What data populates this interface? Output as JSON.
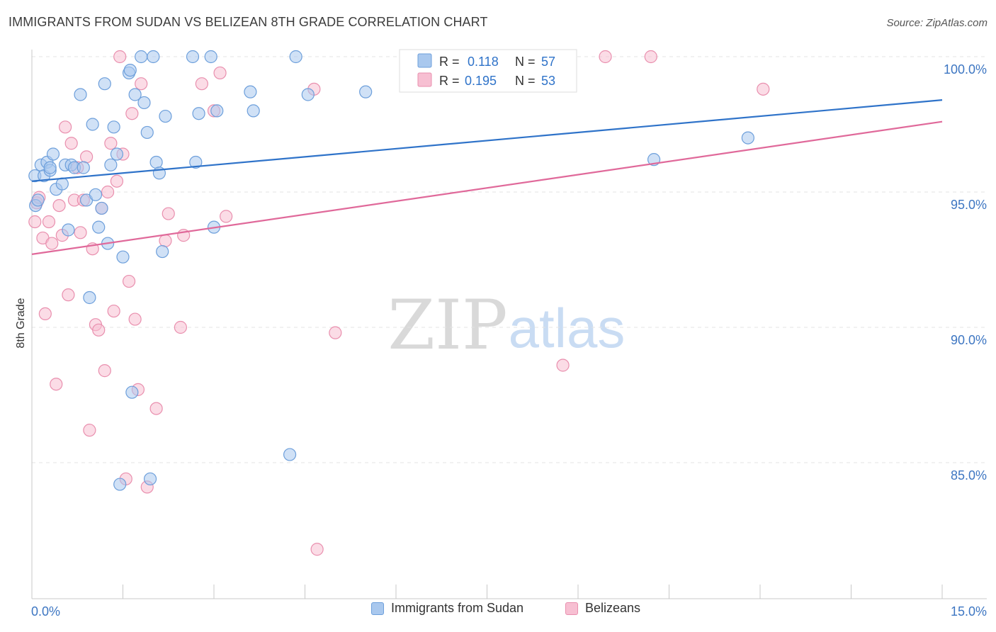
{
  "header": {
    "title": "IMMIGRANTS FROM SUDAN VS BELIZEAN 8TH GRADE CORRELATION CHART",
    "source": "Source: ZipAtlas.com"
  },
  "watermark": {
    "zip": "ZIP",
    "atlas": "atlas"
  },
  "colors": {
    "blue_fill": "#a9c8ee",
    "blue_stroke": "#6d9fdb",
    "blue_line": "#2f73c9",
    "pink_fill": "#f7bfd2",
    "pink_stroke": "#e98fae",
    "pink_line": "#e0699a",
    "axis_label": "#3d76c2",
    "grid": "#e3e3e3"
  },
  "legend": {
    "entries": [
      {
        "r_label": "R = ",
        "r_value": "0.118",
        "n_label": "N = ",
        "n_value": "57"
      },
      {
        "r_label": "R = ",
        "r_value": "0.195",
        "n_label": "N = ",
        "n_value": "53"
      }
    ]
  },
  "chart_data": {
    "type": "scatter",
    "title": "IMMIGRANTS FROM SUDAN VS BELIZEAN 8TH GRADE CORRELATION CHART",
    "xlabel": "",
    "ylabel": "8th Grade",
    "xlim": [
      0,
      15
    ],
    "ylim": [
      80,
      100.8
    ],
    "x_tick_labels": [
      "0.0%",
      "15.0%"
    ],
    "y_ticks": [
      85,
      90,
      95,
      100
    ],
    "y_tick_labels": [
      "85.0%",
      "90.0%",
      "95.0%",
      "100.0%"
    ],
    "grid": true,
    "series": [
      {
        "name": "Immigrants from Sudan",
        "R": 0.118,
        "N": 57,
        "trend": {
          "x": [
            0,
            15
          ],
          "y": [
            95.4,
            98.4
          ]
        },
        "points": [
          [
            0.05,
            95.6
          ],
          [
            0.06,
            94.5
          ],
          [
            0.1,
            94.7
          ],
          [
            0.15,
            96.0
          ],
          [
            0.2,
            95.6
          ],
          [
            0.25,
            96.1
          ],
          [
            0.3,
            95.8
          ],
          [
            0.35,
            96.4
          ],
          [
            0.4,
            95.1
          ],
          [
            0.5,
            95.3
          ],
          [
            0.55,
            96.0
          ],
          [
            0.6,
            93.6
          ],
          [
            0.65,
            96.0
          ],
          [
            0.7,
            95.9
          ],
          [
            0.8,
            98.6
          ],
          [
            0.85,
            95.9
          ],
          [
            0.9,
            94.7
          ],
          [
            0.95,
            91.1
          ],
          [
            1.0,
            97.5
          ],
          [
            1.05,
            94.9
          ],
          [
            1.1,
            93.7
          ],
          [
            1.15,
            94.4
          ],
          [
            1.2,
            99.0
          ],
          [
            1.25,
            93.1
          ],
          [
            1.3,
            96.0
          ],
          [
            1.35,
            97.4
          ],
          [
            1.4,
            96.4
          ],
          [
            1.45,
            84.2
          ],
          [
            1.5,
            92.6
          ],
          [
            1.6,
            99.4
          ],
          [
            1.62,
            99.5
          ],
          [
            1.65,
            87.6
          ],
          [
            1.7,
            98.6
          ],
          [
            1.8,
            100.0
          ],
          [
            1.85,
            98.3
          ],
          [
            1.9,
            97.2
          ],
          [
            1.95,
            84.4
          ],
          [
            2.0,
            100.0
          ],
          [
            2.05,
            96.1
          ],
          [
            2.1,
            95.7
          ],
          [
            2.15,
            92.8
          ],
          [
            2.2,
            97.8
          ],
          [
            2.65,
            100.0
          ],
          [
            2.7,
            96.1
          ],
          [
            2.75,
            97.9
          ],
          [
            2.95,
            100.0
          ],
          [
            3.0,
            93.7
          ],
          [
            3.05,
            98.0
          ],
          [
            3.6,
            98.7
          ],
          [
            3.65,
            98.0
          ],
          [
            4.25,
            85.3
          ],
          [
            4.35,
            100.0
          ],
          [
            4.55,
            98.6
          ],
          [
            5.5,
            98.7
          ],
          [
            10.25,
            96.2
          ],
          [
            11.8,
            97.0
          ],
          [
            0.3,
            95.9
          ]
        ]
      },
      {
        "name": "Belizeans",
        "R": 0.195,
        "N": 53,
        "trend": {
          "x": [
            0,
            15
          ],
          "y": [
            92.7,
            97.6
          ]
        },
        "points": [
          [
            0.05,
            93.9
          ],
          [
            0.08,
            94.6
          ],
          [
            0.12,
            94.8
          ],
          [
            0.18,
            93.3
          ],
          [
            0.22,
            90.5
          ],
          [
            0.28,
            93.9
          ],
          [
            0.33,
            93.1
          ],
          [
            0.4,
            87.9
          ],
          [
            0.45,
            94.5
          ],
          [
            0.5,
            93.4
          ],
          [
            0.55,
            97.4
          ],
          [
            0.6,
            91.2
          ],
          [
            0.65,
            96.8
          ],
          [
            0.7,
            94.7
          ],
          [
            0.75,
            95.9
          ],
          [
            0.8,
            93.5
          ],
          [
            0.85,
            94.7
          ],
          [
            0.9,
            96.3
          ],
          [
            0.95,
            86.2
          ],
          [
            1.0,
            92.9
          ],
          [
            1.05,
            90.1
          ],
          [
            1.1,
            89.9
          ],
          [
            1.15,
            94.4
          ],
          [
            1.2,
            88.4
          ],
          [
            1.25,
            95.0
          ],
          [
            1.3,
            96.8
          ],
          [
            1.35,
            90.6
          ],
          [
            1.4,
            95.4
          ],
          [
            1.45,
            100.0
          ],
          [
            1.5,
            96.4
          ],
          [
            1.55,
            84.4
          ],
          [
            1.6,
            91.7
          ],
          [
            1.65,
            97.9
          ],
          [
            1.7,
            90.3
          ],
          [
            1.75,
            87.7
          ],
          [
            1.8,
            99.0
          ],
          [
            1.9,
            84.1
          ],
          [
            2.05,
            87.0
          ],
          [
            2.2,
            93.2
          ],
          [
            2.25,
            94.2
          ],
          [
            2.45,
            90.0
          ],
          [
            2.5,
            93.4
          ],
          [
            2.8,
            99.0
          ],
          [
            3.0,
            98.0
          ],
          [
            3.1,
            99.4
          ],
          [
            3.2,
            94.1
          ],
          [
            4.65,
            98.8
          ],
          [
            4.7,
            81.8
          ],
          [
            5.0,
            89.8
          ],
          [
            8.75,
            88.6
          ],
          [
            9.45,
            100.0
          ],
          [
            10.2,
            100.0
          ],
          [
            12.05,
            98.8
          ]
        ]
      }
    ]
  },
  "bottom_legend": [
    "Immigrants from Sudan",
    "Belizeans"
  ]
}
